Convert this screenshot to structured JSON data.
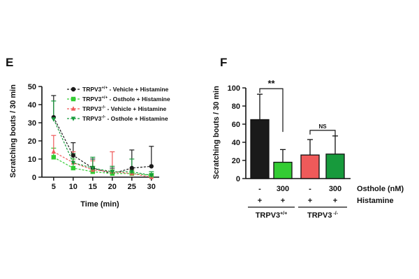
{
  "colors": {
    "wt_vehicle": "#1a1a1a",
    "wt_osthole": "#33cc33",
    "ko_vehicle": "#ef5a5a",
    "ko_osthole": "#179a3c",
    "axis": "#111111"
  },
  "chart_data": [
    {
      "panel": "E",
      "type": "line",
      "xlabel": "Time (min)",
      "ylabel": "Scratching bouts / 30 min",
      "x": [
        5,
        10,
        15,
        20,
        25,
        30
      ],
      "xlim": [
        2,
        32
      ],
      "ylim": [
        0,
        50
      ],
      "xticks": [
        5,
        10,
        15,
        20,
        25,
        30
      ],
      "yticks": [
        0,
        10,
        20,
        30,
        40,
        50
      ],
      "grid": false,
      "legend_position": "top-right",
      "series": [
        {
          "name": "TRPV3+/+ - Vehicle + Histamine",
          "genotype": "TRPV3",
          "genotype_sup": "+/+",
          "treatment": " - Vehicle + Histamine",
          "color_key": "wt_vehicle",
          "marker": "circle",
          "values": [
            33,
            12,
            5,
            2,
            5,
            6
          ],
          "errors": [
            12,
            7,
            5,
            3,
            10,
            11
          ]
        },
        {
          "name": "TRPV3+/+ - Osthole + Histamine",
          "genotype": "TRPV3",
          "genotype_sup": "+/+",
          "treatment": " - Osthole + Histamine",
          "color_key": "wt_osthole",
          "marker": "square",
          "values": [
            11,
            5,
            3,
            2,
            2,
            1
          ],
          "errors": [
            5,
            5,
            3,
            2,
            2,
            1
          ]
        },
        {
          "name": "TRPV3-/- - Vehicle + Histamine",
          "genotype": "TRPV3",
          "genotype_sup": "-/-",
          "treatment": " - Vehicle + Histamine",
          "color_key": "ko_vehicle",
          "marker": "triangle-up",
          "values": [
            14,
            8,
            4,
            3,
            2,
            0
          ],
          "errors": [
            9,
            6,
            5,
            11,
            2,
            1
          ]
        },
        {
          "name": "TRPV3-/- - Osthole + Histamine",
          "genotype": "TRPV3",
          "genotype_sup": "-/-",
          "treatment": " - Osthole + Histamine",
          "color_key": "ko_osthole",
          "marker": "triangle-down",
          "values": [
            32,
            8,
            5,
            3,
            3,
            1
          ],
          "errors": [
            10,
            5,
            6,
            3,
            7,
            2
          ]
        }
      ]
    },
    {
      "panel": "F",
      "type": "bar",
      "ylabel": "Scratching bouts / 30 min",
      "ylim": [
        0,
        100
      ],
      "yticks": [
        0,
        20,
        40,
        60,
        80,
        100
      ],
      "grid": false,
      "categories": [
        "TRPV3+/+ Vehicle",
        "TRPV3+/+ Osthole 300 nM",
        "TRPV3-/- Vehicle",
        "TRPV3-/- Osthole 300 nM"
      ],
      "values": [
        65,
        18,
        26,
        27
      ],
      "errors": [
        28,
        14,
        17,
        20
      ],
      "bar_color_keys": [
        "wt_vehicle",
        "wt_osthole",
        "ko_vehicle",
        "ko_osthole"
      ],
      "osthole_labels": [
        "-",
        "300",
        "-",
        "300"
      ],
      "histamine_labels": [
        "+",
        "+",
        "+",
        "+"
      ],
      "row_labels": {
        "osthole": "Osthole (nM)",
        "histamine": "Histamine"
      },
      "genotype_groups": [
        {
          "name": "TRPV3",
          "sup": "+/+",
          "bars": [
            0,
            1
          ]
        },
        {
          "name": "TRPV3",
          "sup": " -/-",
          "bars": [
            2,
            3
          ]
        }
      ],
      "significance": [
        {
          "bars": [
            0,
            1
          ],
          "label": "**"
        },
        {
          "bars": [
            2,
            3
          ],
          "label": "NS"
        }
      ]
    }
  ]
}
